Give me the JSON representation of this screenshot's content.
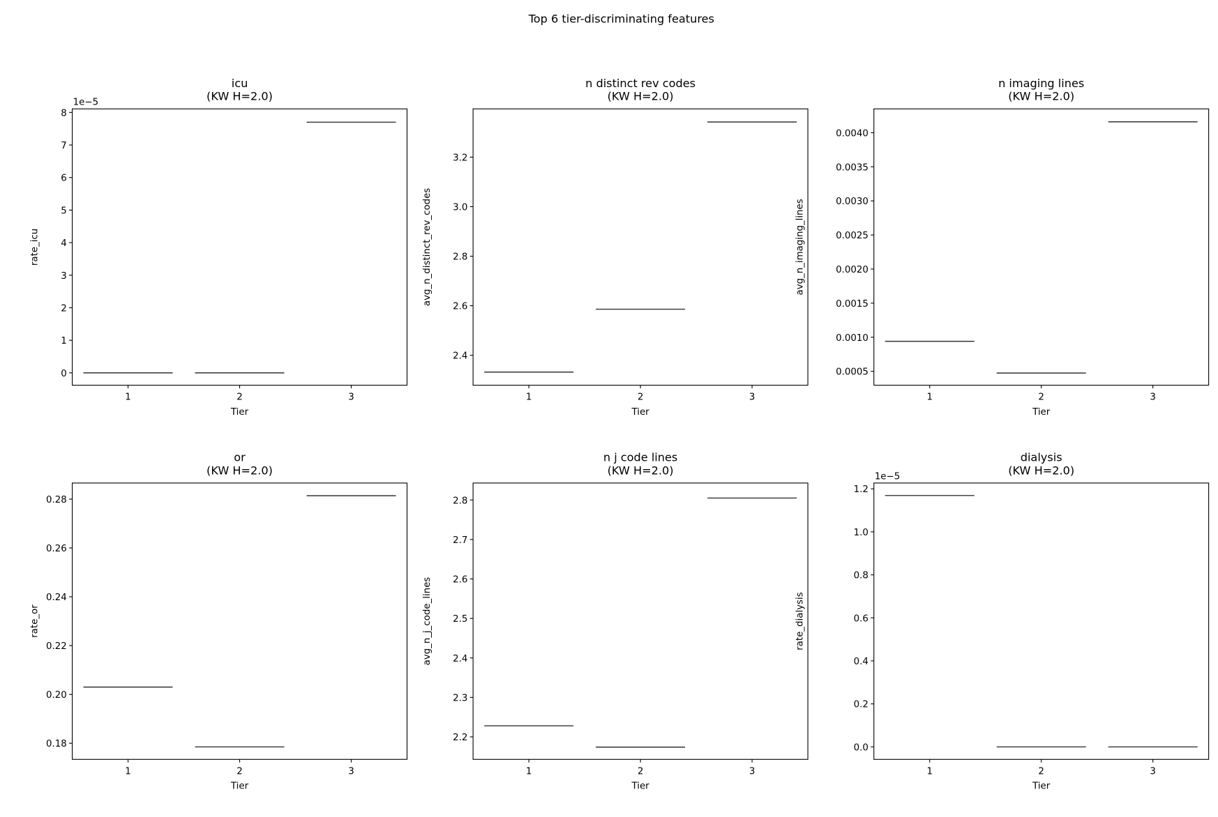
{
  "chart_data": {
    "title": "Top 6 tier-discriminating features",
    "panels": [
      {
        "type": "bar",
        "title": "icu\n(KW H=2.0)",
        "xlabel": "Tier",
        "ylabel": "rate_icu",
        "offset_text": "1e−5",
        "categories": [
          "1",
          "2",
          "3"
        ],
        "values": [
          0,
          0,
          7.7
        ],
        "value_scale": 1e-05,
        "ylim": [
          -0.38,
          8.11
        ],
        "yticks": [
          0,
          1,
          2,
          3,
          4,
          5,
          6,
          7,
          8
        ],
        "ytick_labels": [
          "0",
          "1",
          "2",
          "3",
          "4",
          "5",
          "6",
          "7",
          "8"
        ]
      },
      {
        "type": "bar",
        "title": "n distinct rev codes\n(KW H=2.0)",
        "xlabel": "Tier",
        "ylabel": "avg_n_distinct_rev_codes",
        "categories": [
          "1",
          "2",
          "3"
        ],
        "values": [
          2.332,
          2.586,
          3.342
        ],
        "ylim": [
          2.279,
          3.395
        ],
        "yticks": [
          2.4,
          2.6,
          2.8,
          3.0,
          3.2
        ],
        "ytick_labels": [
          "2.4",
          "2.6",
          "2.8",
          "3.0",
          "3.2"
        ]
      },
      {
        "type": "bar",
        "title": "n imaging lines\n(KW H=2.0)",
        "xlabel": "Tier",
        "ylabel": "avg_n_imaging_lines",
        "categories": [
          "1",
          "2",
          "3"
        ],
        "values": [
          0.00094,
          0.000475,
          0.00416
        ],
        "ylim": [
          0.000296,
          0.00435
        ],
        "yticks": [
          0.0005,
          0.001,
          0.0015,
          0.002,
          0.0025,
          0.003,
          0.0035,
          0.004
        ],
        "ytick_labels": [
          "0.0005",
          "0.0010",
          "0.0015",
          "0.0020",
          "0.0025",
          "0.0030",
          "0.0035",
          "0.0040"
        ]
      },
      {
        "type": "bar",
        "title": "or\n(KW H=2.0)",
        "xlabel": "Tier",
        "ylabel": "rate_or",
        "categories": [
          "1",
          "2",
          "3"
        ],
        "values": [
          0.203,
          0.1785,
          0.2814
        ],
        "ylim": [
          0.1734,
          0.2866
        ],
        "yticks": [
          0.18,
          0.2,
          0.22,
          0.24,
          0.26,
          0.28
        ],
        "ytick_labels": [
          "0.18",
          "0.20",
          "0.22",
          "0.24",
          "0.26",
          "0.28"
        ]
      },
      {
        "type": "bar",
        "title": "n j code lines\n(KW H=2.0)",
        "xlabel": "Tier",
        "ylabel": "avg_n_j_code_lines",
        "categories": [
          "1",
          "2",
          "3"
        ],
        "values": [
          2.228,
          2.174,
          2.805
        ],
        "ylim": [
          2.143,
          2.843
        ],
        "yticks": [
          2.2,
          2.3,
          2.4,
          2.5,
          2.6,
          2.7,
          2.8
        ],
        "ytick_labels": [
          "2.2",
          "2.3",
          "2.4",
          "2.5",
          "2.6",
          "2.7",
          "2.8"
        ]
      },
      {
        "type": "bar",
        "title": "dialysis\n(KW H=2.0)",
        "xlabel": "Tier",
        "ylabel": "rate_dialysis",
        "offset_text": "1e−5",
        "categories": [
          "1",
          "2",
          "3"
        ],
        "values": [
          1.169,
          0,
          0
        ],
        "value_scale": 1e-05,
        "ylim": [
          -0.058,
          1.227
        ],
        "yticks": [
          0,
          0.2,
          0.4,
          0.6,
          0.8,
          1.0,
          1.2
        ],
        "ytick_labels": [
          "0.0",
          "0.2",
          "0.4",
          "0.6",
          "0.8",
          "1.0",
          "1.2"
        ]
      }
    ],
    "line_color": "#333333",
    "grid": false
  }
}
